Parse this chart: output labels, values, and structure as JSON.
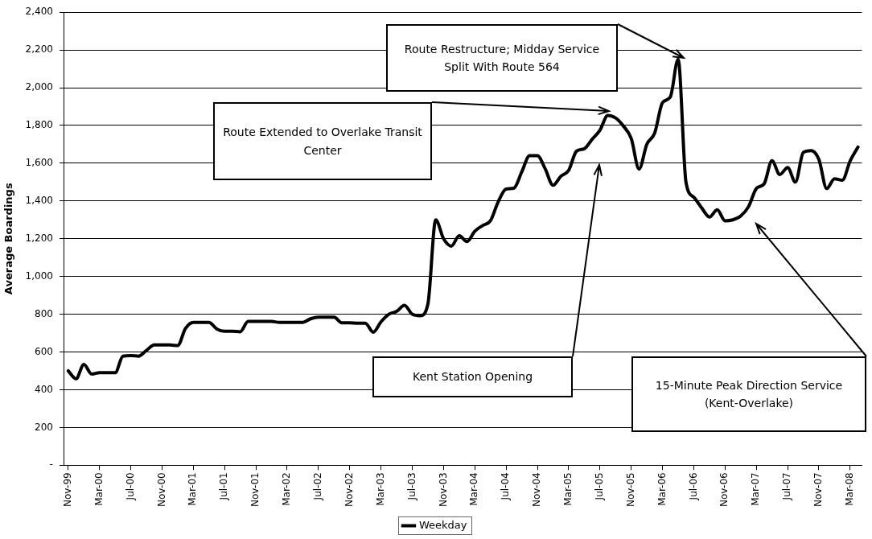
{
  "chart_data": {
    "type": "line",
    "ylabel": "Average Boardings",
    "categories": [
      "Nov-99",
      null,
      null,
      null,
      "Mar-00",
      null,
      null,
      null,
      "Jul-00",
      null,
      null,
      null,
      "Nov-00",
      null,
      null,
      null,
      "Mar-01",
      null,
      null,
      null,
      "Jul-01",
      null,
      null,
      null,
      "Nov-01",
      null,
      null,
      null,
      "Mar-02",
      null,
      null,
      null,
      "Jul-02",
      null,
      null,
      null,
      "Nov-02",
      null,
      null,
      null,
      "Mar-03",
      null,
      null,
      null,
      "Jul-03",
      null,
      null,
      null,
      "Nov-03",
      null,
      null,
      null,
      "Mar-04",
      null,
      null,
      null,
      "Jul-04",
      null,
      null,
      null,
      "Nov-04",
      null,
      null,
      null,
      "Mar-05",
      null,
      null,
      null,
      "Jul-05",
      null,
      null,
      null,
      "Nov-05",
      null,
      null,
      null,
      "Mar-06",
      null,
      null,
      null,
      "Jul-06",
      null,
      null,
      null,
      "Nov-06",
      null,
      null,
      null,
      "Mar-07",
      null,
      null,
      null,
      "Jul-07",
      null,
      null,
      null,
      "Nov-07",
      null,
      null,
      null,
      "Mar-08",
      null
    ],
    "series": [
      {
        "name": "Weekday",
        "color": "#000000",
        "values": [
          500,
          458,
          534,
          483,
          490,
          490,
          490,
          578,
          581,
          578,
          608,
          637,
          637,
          637,
          634,
          725,
          757,
          757,
          757,
          722,
          710,
          710,
          707,
          762,
          762,
          762,
          762,
          757,
          757,
          757,
          757,
          776,
          784,
          784,
          784,
          755,
          755,
          752,
          753,
          705,
          760,
          800,
          815,
          847,
          800,
          792,
          855,
          1300,
          1200,
          1161,
          1216,
          1185,
          1240,
          1270,
          1295,
          1397,
          1463,
          1468,
          1554,
          1640,
          1640,
          1570,
          1483,
          1531,
          1562,
          1664,
          1677,
          1727,
          1775,
          1853,
          1840,
          1797,
          1731,
          1569,
          1701,
          1760,
          1921,
          1951,
          2150,
          1500,
          1420,
          1364,
          1315,
          1353,
          1295,
          1300,
          1320,
          1370,
          1466,
          1491,
          1613,
          1540,
          1577,
          1500,
          1657,
          1667,
          1620,
          1466,
          1518,
          1510,
          1613,
          1686
        ]
      }
    ],
    "ylim": [
      0,
      2400
    ],
    "yticks": [
      {
        "value": 0,
        "label": "-"
      },
      {
        "value": 200,
        "label": "200"
      },
      {
        "value": 400,
        "label": "400"
      },
      {
        "value": 600,
        "label": "600"
      },
      {
        "value": 800,
        "label": "800"
      },
      {
        "value": 1000,
        "label": "1,000"
      },
      {
        "value": 1200,
        "label": "1,200"
      },
      {
        "value": 1400,
        "label": "1,400"
      },
      {
        "value": 1600,
        "label": "1,600"
      },
      {
        "value": 1800,
        "label": "1,800"
      },
      {
        "value": 2000,
        "label": "2,000"
      },
      {
        "value": 2200,
        "label": "2,200"
      },
      {
        "value": 2400,
        "label": "2,400"
      }
    ],
    "grid": "y",
    "legend": "bottom",
    "marker": "none",
    "line_style": "solid",
    "annotations": [
      "Route Restructure; Midday Service Split With Route 564",
      "Route Extended to Overlake Transit Center",
      "Kent Station Opening",
      "15-Minute Peak Direction Service (Kent-Overlake)"
    ]
  }
}
